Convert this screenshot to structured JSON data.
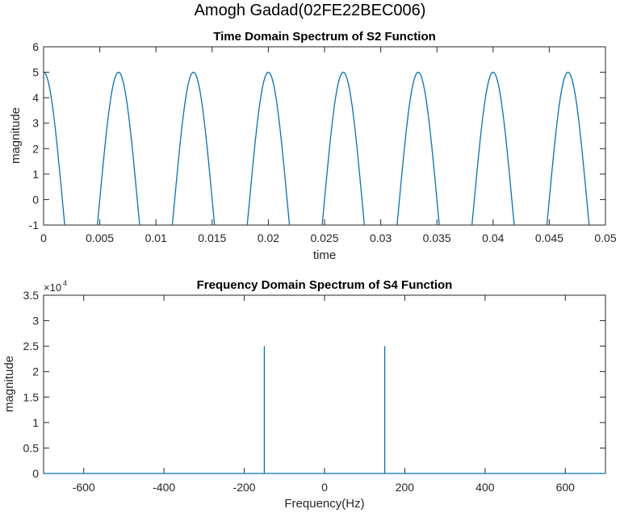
{
  "figure": {
    "suptitle": "Amogh Gadad(02FE22BEC006)",
    "line_color": "#0072BD"
  },
  "chart_data": [
    {
      "type": "line",
      "title": "Time Domain Spectrum of S2 Function",
      "xlabel": "time",
      "ylabel": "magnitude",
      "xlim": [
        0,
        0.05
      ],
      "ylim": [
        -1,
        6
      ],
      "xticks": [
        "0",
        "0.005",
        "0.01",
        "0.015",
        "0.02",
        "0.025",
        "0.03",
        "0.035",
        "0.04",
        "0.045",
        "0.05"
      ],
      "yticks": [
        "-1",
        "0",
        "1",
        "2",
        "3",
        "4",
        "5",
        "6"
      ],
      "grid": false,
      "function": "5*cos(2*pi*150*t)",
      "amplitude": 5,
      "frequency_hz": 150,
      "peaks_x": [
        0,
        0.00667,
        0.01333,
        0.02,
        0.02667,
        0.03333,
        0.04,
        0.04667
      ],
      "peak_value": 5
    },
    {
      "type": "line",
      "title": "Frequency Domain Spectrum of S4 Function",
      "xlabel": "Frequency(Hz)",
      "ylabel": "magnitude",
      "xlim": [
        -700,
        700
      ],
      "ylim": [
        0,
        35000
      ],
      "y_exponent_label": "×10^4",
      "xticks": [
        "-600",
        "-400",
        "-200",
        "0",
        "200",
        "400",
        "600"
      ],
      "yticks": [
        "0",
        "0.5",
        "1",
        "1.5",
        "2",
        "2.5",
        "3",
        "3.5"
      ],
      "grid": false,
      "x": [
        -150,
        150
      ],
      "values": [
        25000,
        25000
      ]
    }
  ],
  "labels": {
    "top_title": "Time Domain Spectrum of S2 Function",
    "top_xlabel": "time",
    "top_ylabel": "magnitude",
    "bottom_title": "Frequency Domain Spectrum of S4 Function",
    "bottom_xlabel": "Frequency(Hz)",
    "bottom_ylabel": "magnitude",
    "exp_base": "×10",
    "exp_power": "4"
  }
}
